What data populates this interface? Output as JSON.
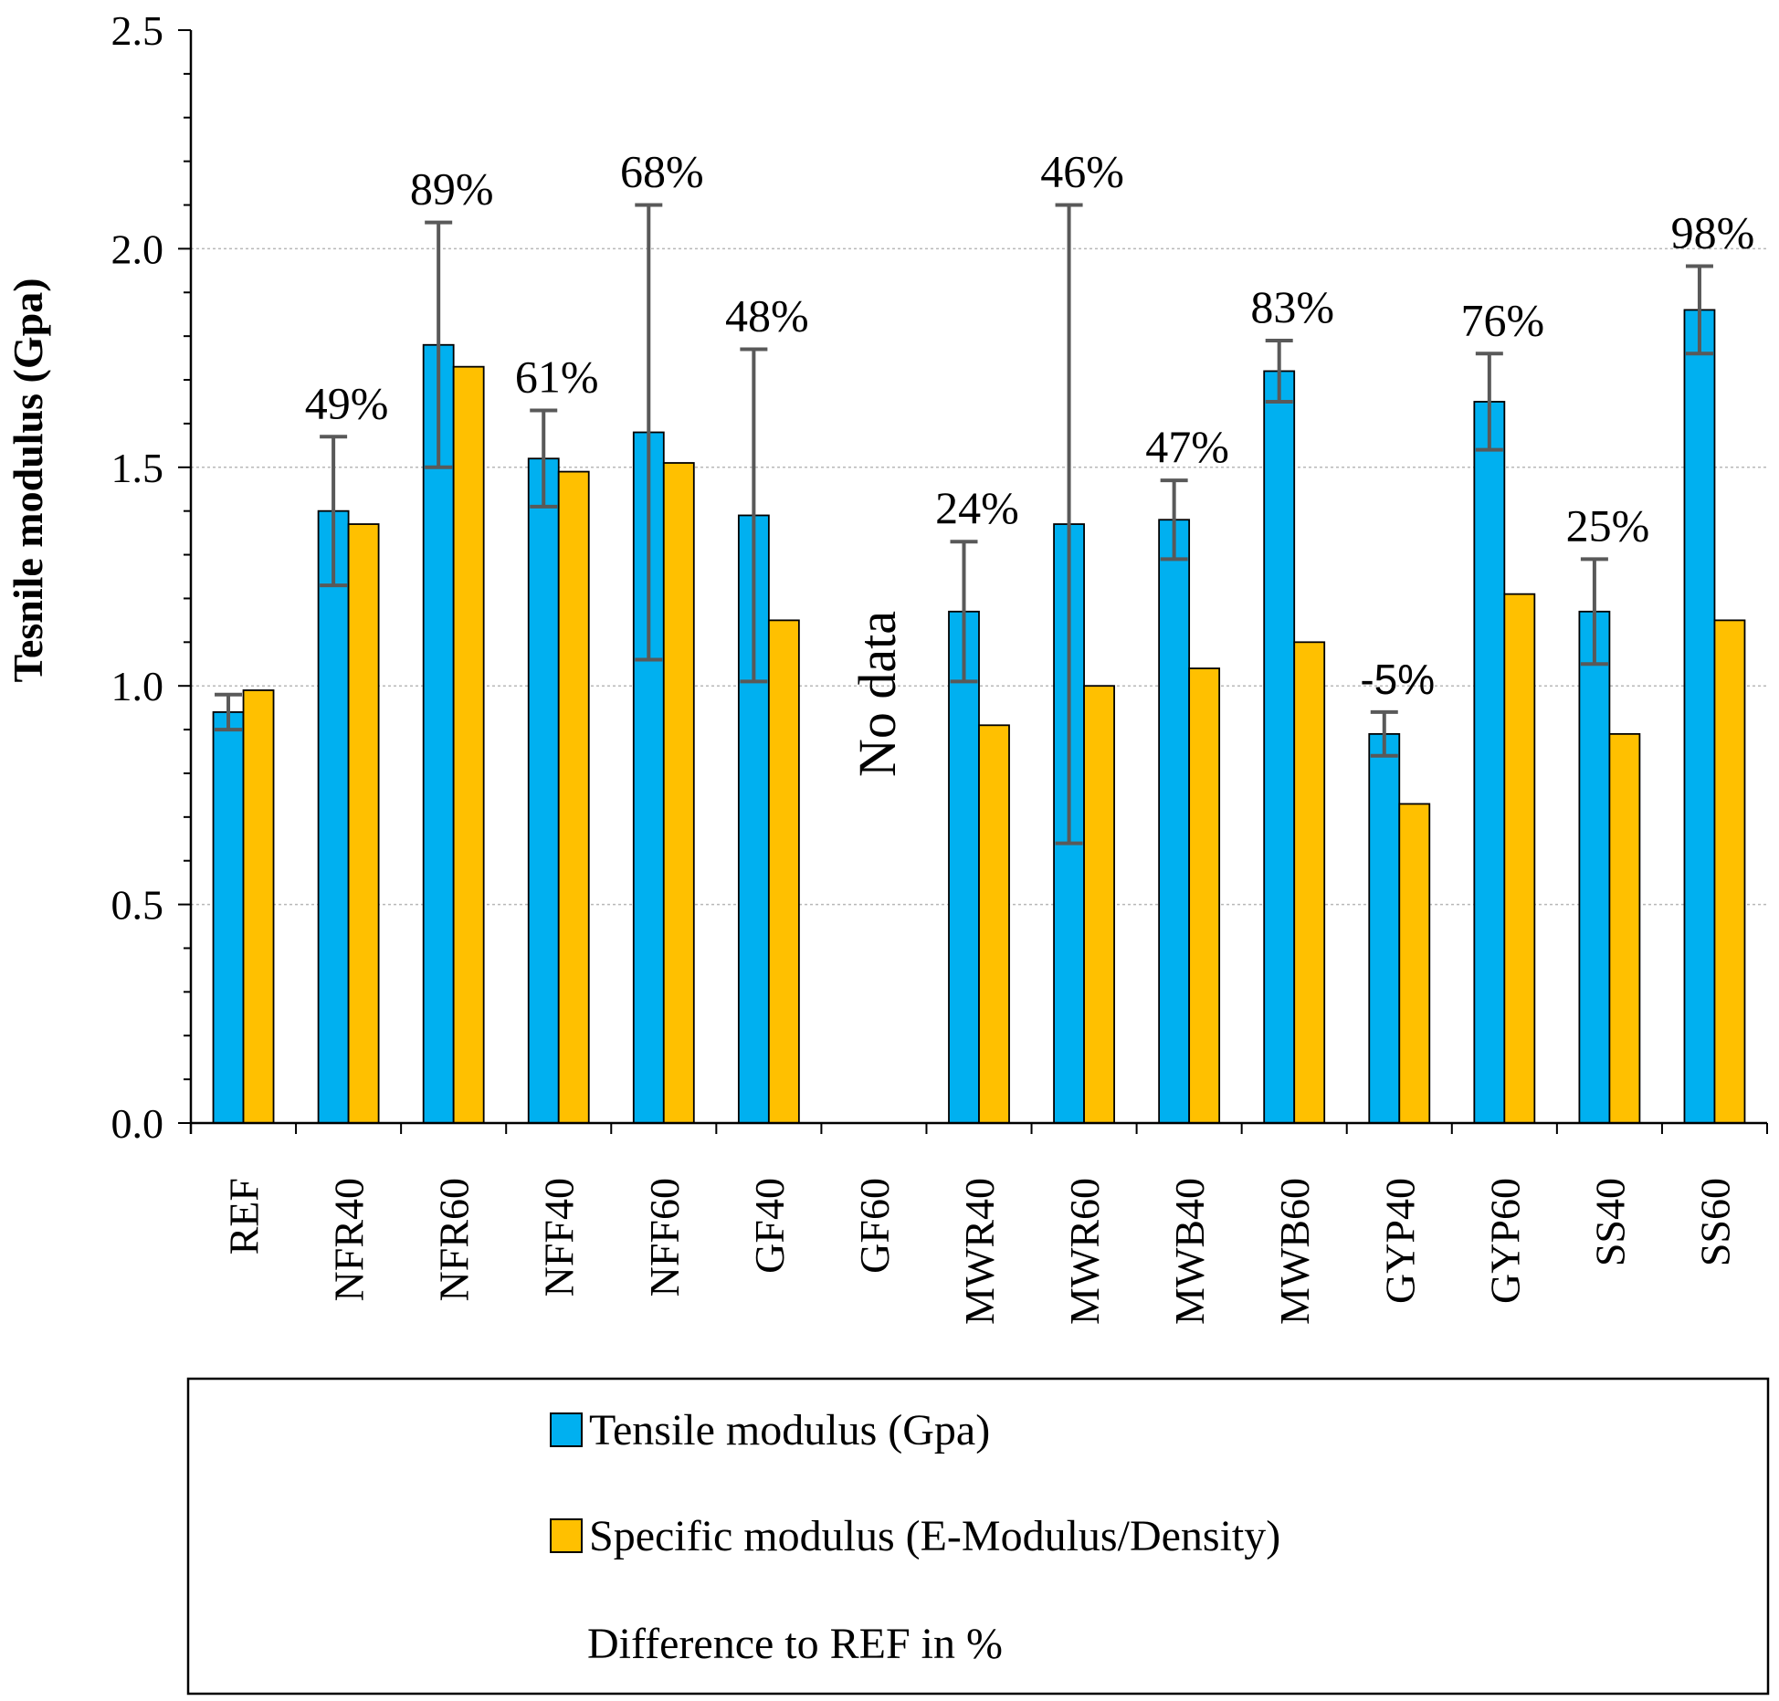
{
  "chart_data": {
    "type": "bar",
    "ylabel": "Tesnile modulus (Gpa)",
    "xlabel": "",
    "ylim": [
      0,
      2.5
    ],
    "yticks": [
      "0.0",
      "0.5",
      "1.0",
      "1.5",
      "2.0",
      "2.5"
    ],
    "grid": "horizontal dotted",
    "categories": [
      "REF",
      "NFR40",
      "NFR60",
      "NFF40",
      "NFF60",
      "GF40",
      "GF60",
      "MWR40",
      "MWR60",
      "MWB40",
      "MWB60",
      "GYP40",
      "GYP60",
      "SS40",
      "SS60"
    ],
    "series": [
      {
        "name": "Tensile modulus (Gpa)",
        "color": "#00b0f0",
        "values": [
          0.94,
          1.4,
          1.78,
          1.52,
          1.58,
          1.39,
          0.0,
          1.17,
          1.37,
          1.38,
          1.72,
          0.89,
          1.65,
          1.17,
          1.86
        ],
        "error": [
          0.04,
          0.17,
          0.28,
          0.11,
          0.52,
          0.38,
          null,
          0.16,
          0.73,
          0.09,
          0.07,
          0.05,
          0.11,
          0.12,
          0.1
        ]
      },
      {
        "name": "Specific modulus (E-Modulus/Density)",
        "color": "#ffc000",
        "values": [
          0.99,
          1.37,
          1.73,
          1.49,
          1.51,
          1.15,
          0.0,
          0.91,
          1.0,
          1.04,
          1.1,
          0.73,
          1.21,
          0.89,
          1.15
        ]
      }
    ],
    "annotations": {
      "difference_labels": [
        "",
        "49%",
        "89%",
        "61%",
        "68%",
        "48%",
        "",
        "24%",
        "46%",
        "47%",
        "83%",
        "-5%",
        "76%",
        "25%",
        "98%"
      ],
      "no_data_label": "No data",
      "no_data_category": "GF60"
    },
    "legend": {
      "position": "bottom",
      "entries": [
        {
          "label": "Tensile modulus (Gpa)",
          "color": "#00b0f0"
        },
        {
          "label": "Specific modulus (E-Modulus/Density)",
          "color": "#ffc000"
        },
        {
          "label": "Difference to REF in %",
          "color": "none"
        }
      ]
    }
  }
}
